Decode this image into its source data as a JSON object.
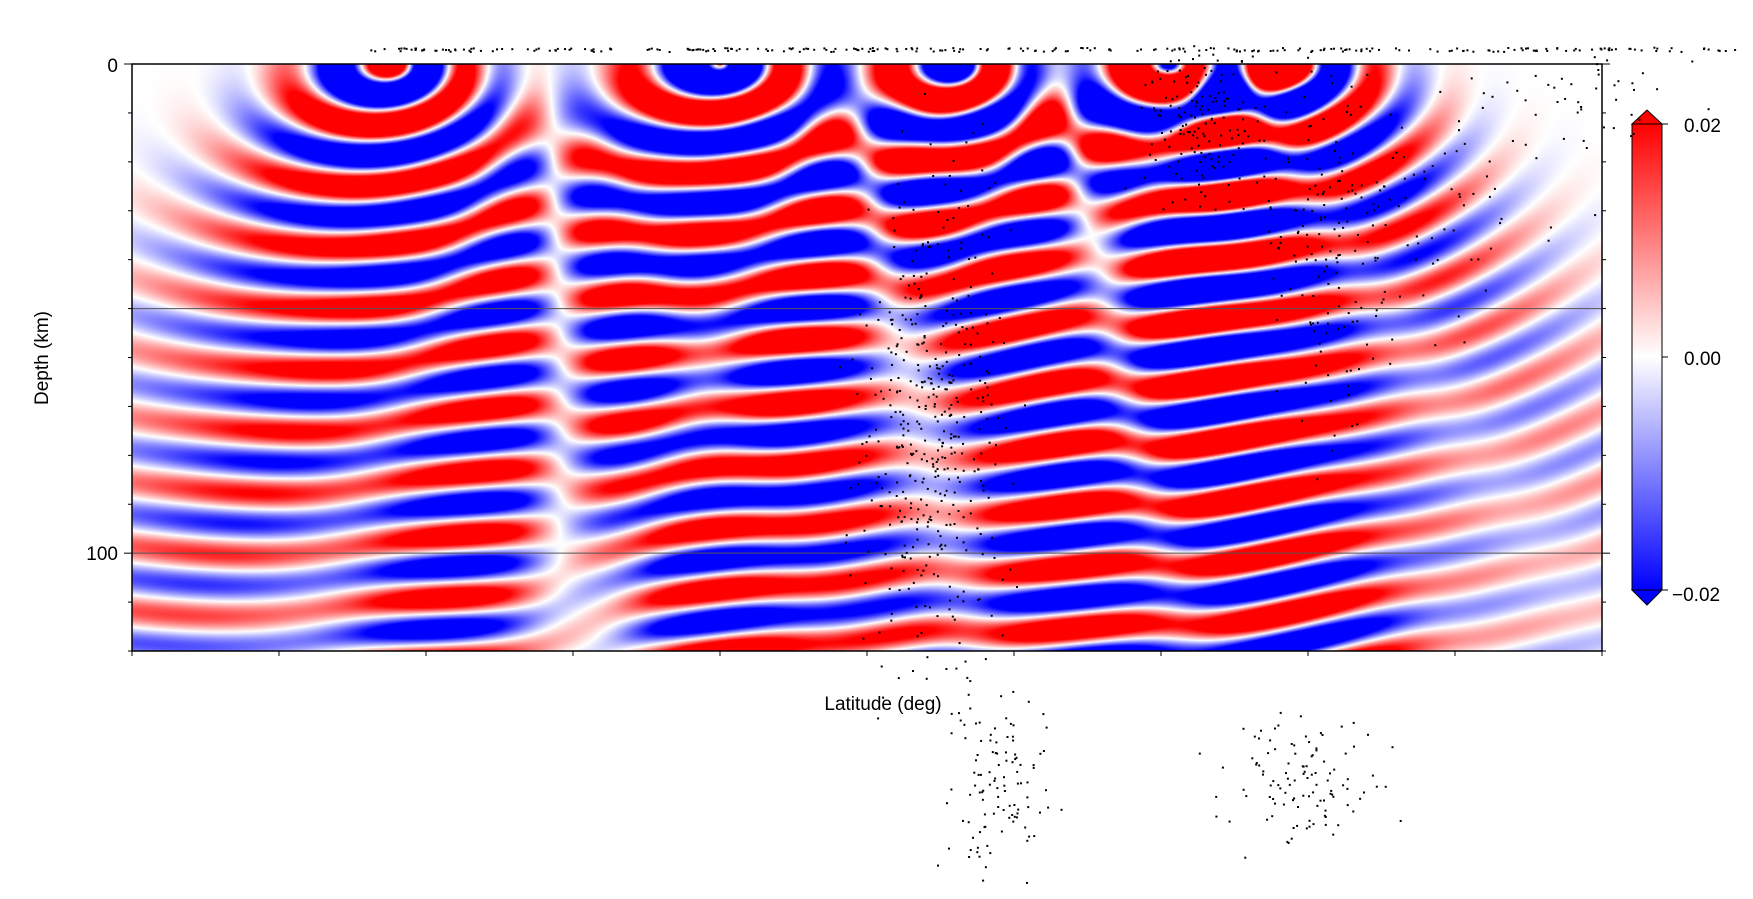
{
  "chart_data": {
    "type": "heatmap",
    "title": "",
    "xlabel": "Latitude (deg)",
    "ylabel": "Depth (km)",
    "ylim": [
      0,
      120
    ],
    "y_inverted": true,
    "yticks": [
      {
        "value": 0,
        "label": "0"
      },
      {
        "value": 100,
        "label": "100"
      }
    ],
    "reference_lines_depth_km": [
      50,
      100
    ],
    "colorbar": {
      "ticks": [
        {
          "value": 0.02,
          "label": "0.02"
        },
        {
          "value": 0.0,
          "label": "0.00"
        },
        {
          "value": -0.02,
          "label": "−0.02"
        }
      ],
      "range": [
        -0.02,
        0.02
      ],
      "colors": {
        "high": "#ff0000",
        "mid": "#ffffff",
        "low": "#0000ff"
      },
      "extend": "both"
    },
    "wave_sources": [
      {
        "x_frac": 0.175,
        "spread": 1.0,
        "amplitude": 1.0
      },
      {
        "x_frac": 0.4,
        "spread": 1.1,
        "amplitude": 1.0
      },
      {
        "x_frac": 0.558,
        "spread": 0.95,
        "amplitude": 1.0
      },
      {
        "x_frac": 0.705,
        "spread": 1.0,
        "amplitude": 1.0
      },
      {
        "x_frac": 0.782,
        "spread": 1.05,
        "amplitude": 1.0
      }
    ],
    "scatter_note_count": 1200,
    "grid": false
  },
  "colors": {
    "frame": "#000000",
    "reference_line": "#555555",
    "scatter": "#000000"
  }
}
